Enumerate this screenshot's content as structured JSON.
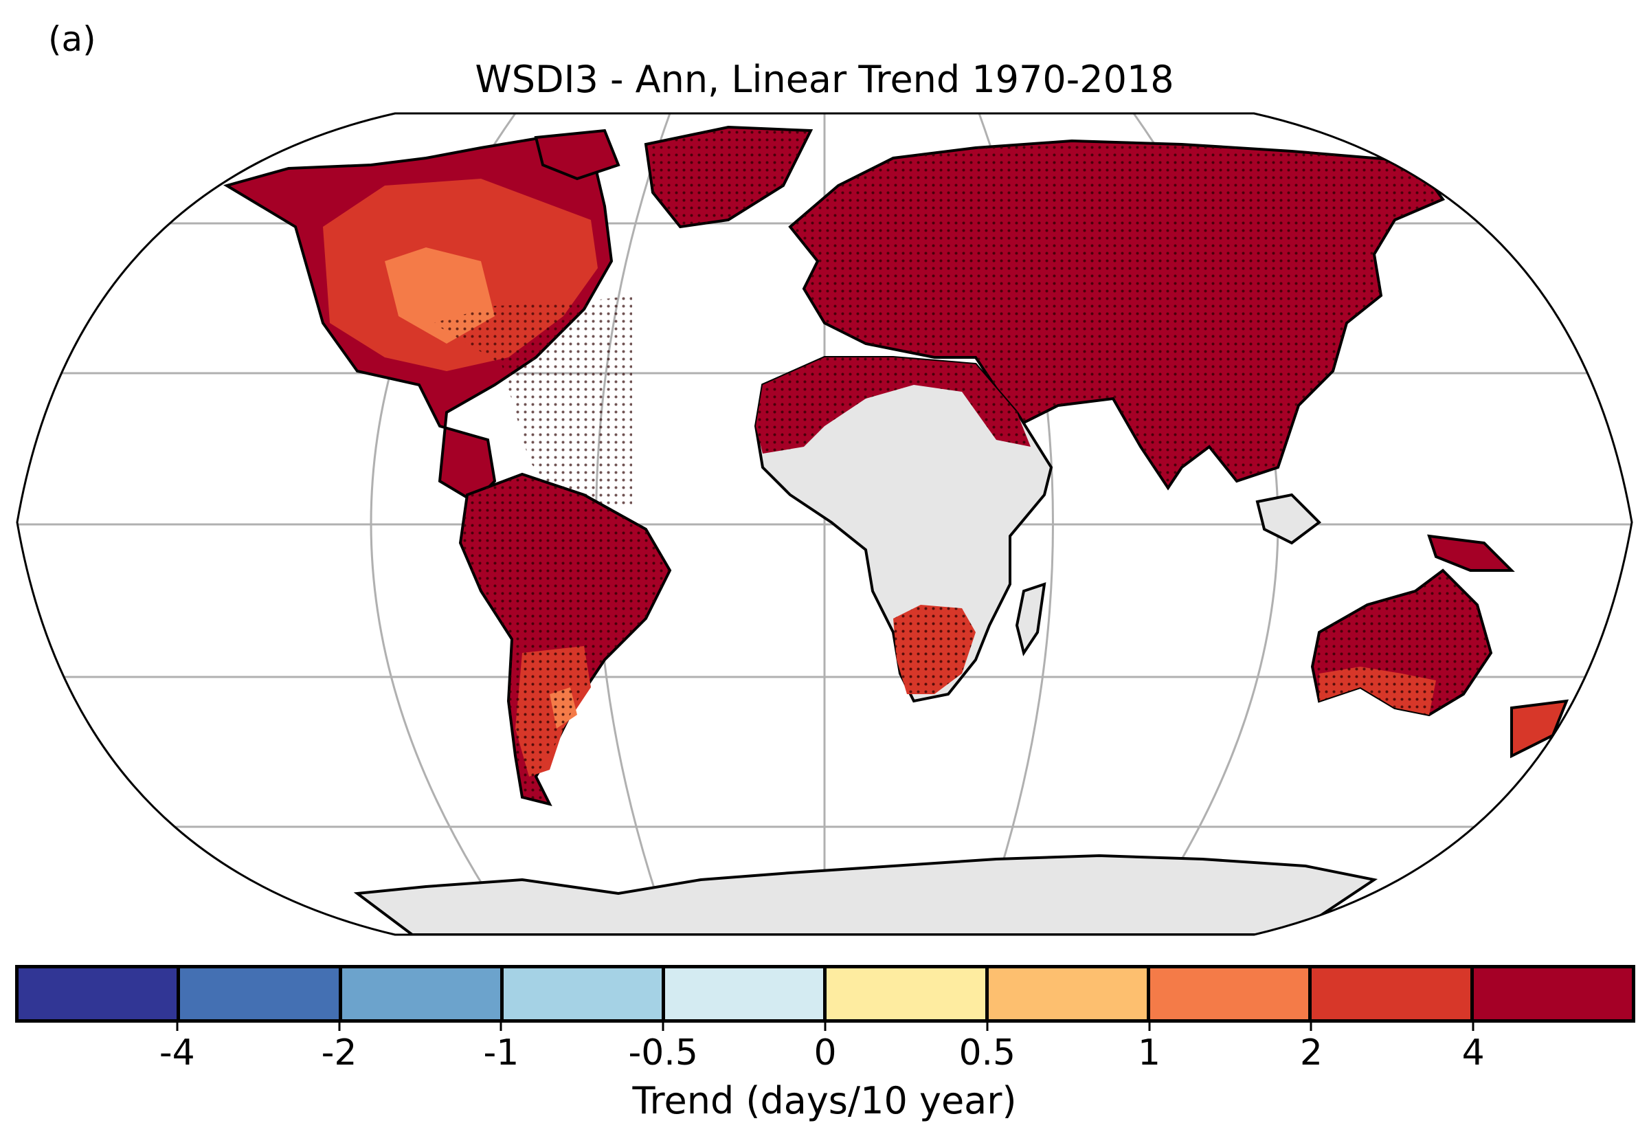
{
  "panel_label": "(a)",
  "title": "WSDI3 - Ann, Linear Trend 1970-2018",
  "colorbar": {
    "label": "Trend (days/10 year)",
    "colors": [
      "#313695",
      "#4470b3",
      "#6ca3cc",
      "#a5d2e5",
      "#d4ebf2",
      "#feeca0",
      "#fdbf6f",
      "#f47b48",
      "#d73729",
      "#a50026"
    ],
    "tick_labels": [
      "-4",
      "-2",
      "-1",
      "-0.5",
      "0",
      "0.5",
      "1",
      "2",
      "4"
    ]
  },
  "map": {
    "projection": "Robinson",
    "land_no_data_color": "#e6e6e6",
    "ocean_color": "#ffffff",
    "gridline_color": "#b0b0b0",
    "stippling": "significant trend"
  }
}
